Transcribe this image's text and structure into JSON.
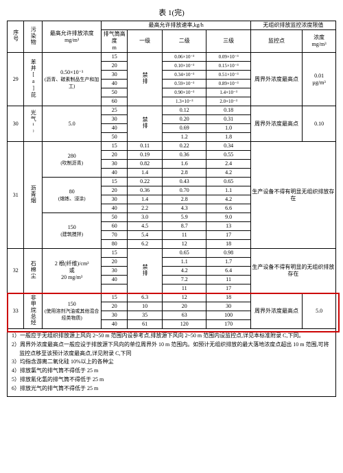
{
  "title": "表 1(完)",
  "header": {
    "seq": "序号",
    "pollutant": "污染物",
    "maxConc": "最高允许排放浓度",
    "maxConcUnit": "mg/m³",
    "rateGroup": "最高允许排放速率,kg/h",
    "unorgGroup": "无组织排放监控浓度限值",
    "stackH": "排气筒高度",
    "stackHUnit": "m",
    "l1": "一级",
    "l2": "二级",
    "l3": "三级",
    "monPt": "监控点",
    "conc": "浓度",
    "concUnit": "mg/m³"
  },
  "rows": {
    "r29": {
      "seq": "29",
      "pollutant": "苯并[a]芘",
      "conc": "0.50×10⁻³",
      "concNote": "(沥青、碳素制品生产和加工)",
      "h": [
        "15",
        "20",
        "30",
        "40",
        "50",
        "60"
      ],
      "l1": "禁排",
      "l2": [
        "0.06×10⁻³",
        "0.10×10⁻³",
        "0.34×10⁻³",
        "0.59×10⁻³",
        "0.90×10⁻³",
        "1.3×10⁻³"
      ],
      "l3": [
        "0.09×10⁻³",
        "0.15×10⁻³",
        "0.51×10⁻³",
        "0.89×10⁻³",
        "1.4×10⁻³",
        "2.0×10⁻³"
      ],
      "mon": "周界外浓度最高点",
      "limit": "0.01",
      "limitUnit": "µg/m³"
    },
    "r30": {
      "seq": "30",
      "pollutant": "光气¹⁾",
      "conc": "5.0",
      "h": [
        "25",
        "30",
        "40",
        "50"
      ],
      "l1": "禁排",
      "l2": [
        "0.12",
        "0.20",
        "0.69",
        "1.2"
      ],
      "l3": [
        "0.18",
        "0.31",
        "1.0",
        "1.8"
      ],
      "mon": "周界外浓度最高点",
      "limit": "0.10"
    },
    "r31": {
      "seq": "31",
      "pollutant": "沥青烟",
      "c1": "280",
      "c1n": "(吹制沥青)",
      "c2": "80",
      "c2n": "(熔炼、浸涂)",
      "c3": "150",
      "c3n": "(建筑搅拌)",
      "h": [
        "15",
        "20",
        "30",
        "40",
        "15",
        "20",
        "30",
        "40",
        "50",
        "60",
        "70",
        "80"
      ],
      "l1": [
        "0.11",
        "0.19",
        "0.82",
        "1.4",
        "0.22",
        "0.36",
        "1.4",
        "2.2",
        "3.0",
        "4.5",
        "5.4",
        "6.2"
      ],
      "l2": [
        "0.22",
        "0.36",
        "1.6",
        "2.8",
        "0.43",
        "0.70",
        "2.8",
        "4.3",
        "5.9",
        "8.7",
        "11",
        "12"
      ],
      "l3": [
        "0.34",
        "0.55",
        "2.4",
        "4.2",
        "0.65",
        "1.1",
        "4.2",
        "6.6",
        "9.0",
        "13",
        "17",
        "18"
      ],
      "mon": "生产设备不得有明显无组织排放存在"
    },
    "r32": {
      "seq": "32",
      "pollutant": "石棉尘",
      "conc1": "2 根(纤维)/cm³",
      "concOr": "或",
      "conc2": "20 mg/m³",
      "h": [
        "15",
        "20",
        "30",
        "40",
        ""
      ],
      "l1": "禁排",
      "l2": [
        "0.65",
        "1.1",
        "4.2",
        "7.2",
        "11"
      ],
      "l3": [
        "0.98",
        "1.7",
        "6.4",
        "11",
        "17"
      ],
      "mon": "生产设备不得有明显的无组织排放存在"
    },
    "r33": {
      "seq": "33",
      "pollutant": "非甲烷总烃",
      "conc": "150",
      "concNote": "(使用溶剂汽油或其他混合烃类物质)",
      "h": [
        "15",
        "20",
        "30",
        "40"
      ],
      "l1": [
        "6.3",
        "10",
        "35",
        "61"
      ],
      "l2": [
        "12",
        "20",
        "63",
        "120"
      ],
      "l3": [
        "18",
        "30",
        "100",
        "170"
      ],
      "mon": "周界外浓度最高点",
      "limit": "5.0"
    }
  },
  "notes": {
    "n1": "1）一般应于无组织排放源上风向 2~50 m 范围内设参考点,排放源下风向 2~50 m 范围内设监控点,详见本标准附录 C,下同。",
    "n2": "2）周界外浓度最高点一般应设于排放源下风向的单位周界外 10 m 范围内。如预计无组织排放的最大落地浓度点超出 10 m 范围,可将监控点移至该预计浓度最高点,详见附录 C,下同",
    "n3": "3）均指含游离二氧化硅 10%以上的各种尘",
    "n4": "4）排放氯气的排气筒不得低于 25 m",
    "n5": "5）排放氰化氢的排气筒不得低于 25 m",
    "n6": "6）排放光气的排气筒不得低于 25 m"
  },
  "colors": {
    "border": "#000000",
    "highlight": "#cc0000",
    "bg": "#ffffff"
  }
}
